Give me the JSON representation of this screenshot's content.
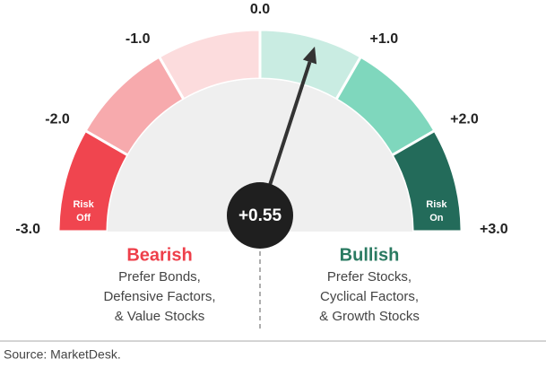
{
  "chart_data": {
    "type": "gauge",
    "min": -3,
    "max": 3,
    "ticks": [
      {
        "value": -3,
        "label": "-3.0"
      },
      {
        "value": -2,
        "label": "-2.0"
      },
      {
        "value": -1,
        "label": "-1.0"
      },
      {
        "value": 0,
        "label": "0.0"
      },
      {
        "value": 1,
        "label": "+1.0"
      },
      {
        "value": 2,
        "label": "+2.0"
      },
      {
        "value": 3,
        "label": "+3.0"
      }
    ],
    "segment_colors": [
      "#f0454f",
      "#f7aaad",
      "#fcdcdd",
      "#c9ece2",
      "#7fd7bd",
      "#236b5a"
    ],
    "value": 0.55,
    "value_label": "+0.55",
    "risk_off_label": [
      "Risk",
      "Off"
    ],
    "risk_on_label": [
      "Risk",
      "On"
    ],
    "bearish": {
      "title": "Bearish",
      "color": "#ee3f4a",
      "lines": [
        "Prefer Bonds,",
        "Defensive Factors,",
        "& Value Stocks"
      ]
    },
    "bullish": {
      "title": "Bullish",
      "color": "#2a7a61",
      "lines": [
        "Prefer Stocks,",
        "Cyclical Factors,",
        "& Growth Stocks"
      ]
    },
    "source": "Source: MarketDesk."
  }
}
